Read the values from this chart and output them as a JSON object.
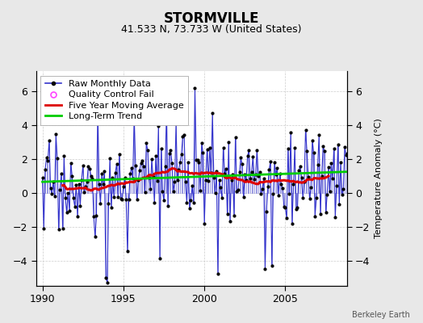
{
  "title": "STORMVILLE",
  "subtitle": "41.533 N, 73.733 W (United States)",
  "ylabel": "Temperature Anomaly (°C)",
  "credit": "Berkeley Earth",
  "xlim": [
    1989.6,
    2008.8
  ],
  "ylim": [
    -5.5,
    7.2
  ],
  "yticks": [
    -4,
    -2,
    0,
    2,
    4,
    6
  ],
  "xticks": [
    1990,
    1995,
    2000,
    2005
  ],
  "raw_color": "#3333cc",
  "raw_stem_color": "#8888dd",
  "moving_avg_color": "#dd0000",
  "trend_color": "#00cc00",
  "qc_color": "#ff44ff",
  "background_color": "#e8e8e8",
  "plot_bg_color": "#ffffff",
  "grid_color": "#cccccc",
  "start_year": 1990,
  "n_months": 228,
  "seed": 17,
  "title_fontsize": 12,
  "subtitle_fontsize": 9,
  "tick_fontsize": 9,
  "ylabel_fontsize": 8,
  "legend_fontsize": 8,
  "credit_fontsize": 7
}
